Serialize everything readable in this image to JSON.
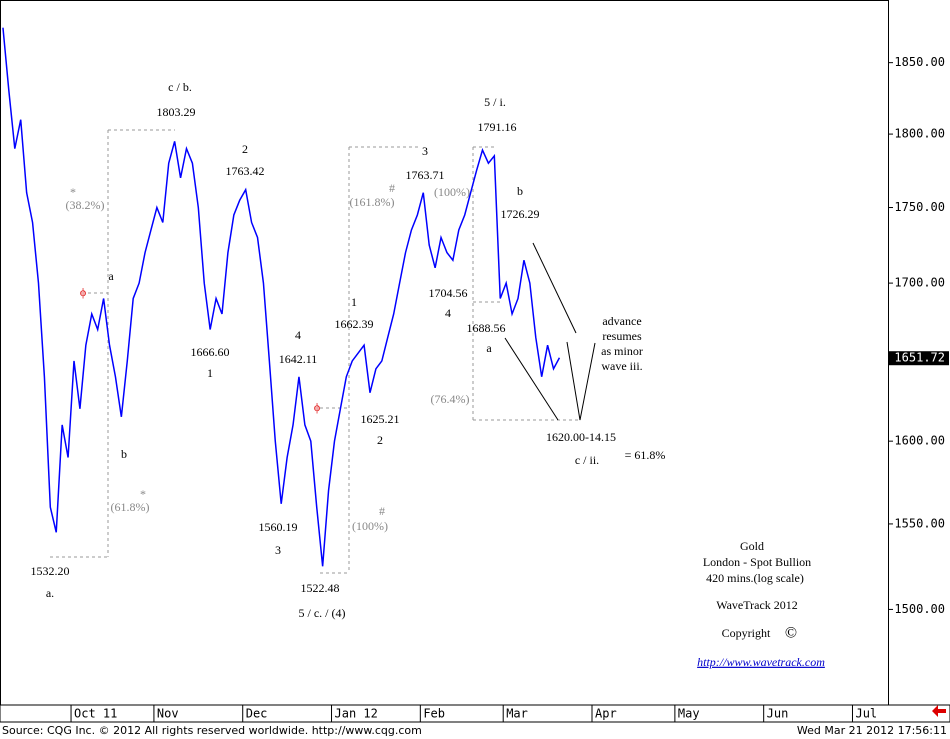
{
  "chart_data": {
    "type": "line",
    "series": [
      {
        "name": "Gold",
        "color": "#0000ff",
        "values": [
          1875,
          1830,
          1790,
          1810,
          1760,
          1740,
          1700,
          1640,
          1560,
          1545,
          1610,
          1590,
          1650,
          1620,
          1660,
          1680,
          1670,
          1690,
          1660,
          1640,
          1615,
          1650,
          1690,
          1700,
          1720,
          1735,
          1750,
          1740,
          1780,
          1795,
          1770,
          1790,
          1780,
          1750,
          1700,
          1670,
          1690,
          1680,
          1720,
          1745,
          1755,
          1762,
          1740,
          1730,
          1700,
          1650,
          1600,
          1562,
          1590,
          1610,
          1640,
          1610,
          1600,
          1560,
          1525,
          1570,
          1600,
          1620,
          1640,
          1650,
          1655,
          1660,
          1630,
          1645,
          1650,
          1665,
          1680,
          1700,
          1720,
          1735,
          1745,
          1760,
          1725,
          1710,
          1730,
          1720,
          1715,
          1735,
          1745,
          1760,
          1775,
          1789,
          1780,
          1785,
          1690,
          1700,
          1680,
          1690,
          1715,
          1700,
          1665,
          1640,
          1660,
          1645,
          1652
        ]
      }
    ],
    "log_scale": true,
    "ylim": [
      1446,
      1895
    ],
    "yticks": [
      {
        "value": 1500,
        "label": "1500.00"
      },
      {
        "value": 1550,
        "label": "1550.00"
      },
      {
        "value": 1600,
        "label": "1600.00"
      },
      {
        "value": 1650,
        "label": "1650.00"
      },
      {
        "value": 1700,
        "label": "1700.00"
      },
      {
        "value": 1750,
        "label": "1750.00"
      },
      {
        "value": 1800,
        "label": "1800.00"
      },
      {
        "value": 1850,
        "label": "1850.00"
      }
    ],
    "last_price": {
      "value": 1651.72,
      "label": "1651.72"
    },
    "xlim": [
      0,
      150
    ],
    "xticks": [
      {
        "value": 12,
        "label": "Oct 11"
      },
      {
        "value": 26,
        "label": "Nov"
      },
      {
        "value": 41,
        "label": "Dec"
      },
      {
        "value": 56,
        "label": "Jan 12"
      },
      {
        "value": 71,
        "label": "Feb"
      },
      {
        "value": 85,
        "label": "Mar"
      },
      {
        "value": 100,
        "label": "Apr"
      },
      {
        "value": 114,
        "label": "May"
      },
      {
        "value": 129,
        "label": "Jun"
      },
      {
        "value": 144,
        "label": "Jul"
      }
    ],
    "annotations": [
      "c / b.",
      "1803.29",
      "2",
      "1763.42",
      "1666.60",
      "1",
      "4",
      "1642.11",
      "1560.19",
      "3",
      "1522.48",
      "5 / c. / (4)",
      "1532.20",
      "a.",
      "a",
      "b",
      "*",
      "(38.2%)",
      "*",
      "(61.8%)",
      "1",
      "1662.39",
      "1625.21",
      "2",
      "#",
      "(161.8%)",
      "#",
      "(100%)",
      "3",
      "1763.71",
      "(100%)",
      "1704.56",
      "4",
      "5 / i.",
      "1791.16",
      "b",
      "1726.29",
      "1688.56",
      "a",
      "(76.4%)",
      "1620.00-14.15",
      "c / ii.",
      "= 61.8%",
      "advance",
      "resumes",
      "as minor",
      "wave iii.",
      "ϕ",
      "ϕ"
    ],
    "info": [
      "Gold",
      "London - Spot Bullion",
      "420 mins.(log scale)",
      "WaveTrack 2012",
      "Copyright",
      "©",
      "http://www.wavetrack.com"
    ],
    "source": "Source: CQG Inc. © 2012 All rights reserved worldwide. http://www.cqg.com",
    "timestamp": "Wed Mar 21 2012 17:56:11"
  }
}
